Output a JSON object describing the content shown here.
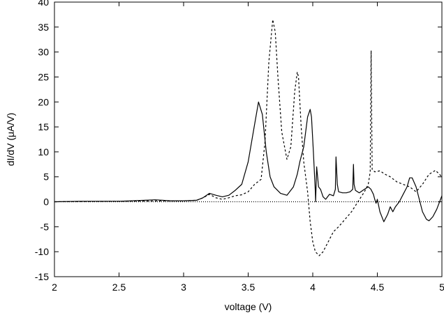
{
  "chart_data": {
    "type": "line",
    "title": "",
    "xlabel": "voltage (V)",
    "ylabel": "dI/dV (μA/V)",
    "xlim": [
      2,
      5
    ],
    "ylim": [
      -15,
      40
    ],
    "xticks": [
      2,
      2.5,
      3,
      3.5,
      4,
      4.5,
      5
    ],
    "xtick_labels": [
      "2",
      "2.5",
      "3",
      "3.5",
      "4",
      "4.5",
      "5"
    ],
    "yticks": [
      -15,
      -10,
      -5,
      0,
      5,
      10,
      15,
      20,
      25,
      30,
      35,
      40
    ],
    "ytick_labels": [
      "-15",
      "-10",
      "-5",
      "0",
      "5",
      "10",
      "15",
      "20",
      "25",
      "30",
      "35",
      "40"
    ],
    "grid": false,
    "legend": "none",
    "series": [
      {
        "style": "solid",
        "color": "#000000",
        "x": [
          2.0,
          2.2,
          2.5,
          2.7,
          2.78,
          2.9,
          3.0,
          3.1,
          3.15,
          3.2,
          3.25,
          3.3,
          3.35,
          3.4,
          3.45,
          3.5,
          3.55,
          3.58,
          3.61,
          3.64,
          3.67,
          3.7,
          3.75,
          3.8,
          3.85,
          3.88,
          3.9,
          3.93,
          3.96,
          3.98,
          3.99,
          4.005,
          4.02,
          4.022,
          4.03,
          4.045,
          4.06,
          4.08,
          4.1,
          4.13,
          4.16,
          4.175,
          4.18,
          4.19,
          4.2,
          4.23,
          4.26,
          4.29,
          4.31,
          4.315,
          4.32,
          4.33,
          4.36,
          4.4,
          4.43,
          4.45,
          4.47,
          4.48,
          4.49,
          4.5,
          4.52,
          4.55,
          4.58,
          4.6,
          4.62,
          4.64,
          4.67,
          4.7,
          4.73,
          4.75,
          4.77,
          4.8,
          4.85,
          4.88,
          4.9,
          4.93,
          4.96,
          5.0
        ],
        "y": [
          0.0,
          0.1,
          0.1,
          0.3,
          0.4,
          0.2,
          0.2,
          0.3,
          0.8,
          1.7,
          1.3,
          1.0,
          1.3,
          2.3,
          3.5,
          8.0,
          15.5,
          20.0,
          17.5,
          10.0,
          5.0,
          3.0,
          1.7,
          1.3,
          3.0,
          5.5,
          8.0,
          11.0,
          17.0,
          18.5,
          17.0,
          10.0,
          2.0,
          0.0,
          7.0,
          3.0,
          2.5,
          1.0,
          0.5,
          1.5,
          1.2,
          2.5,
          9.0,
          3.5,
          2.0,
          1.8,
          1.8,
          2.0,
          2.5,
          7.5,
          3.5,
          2.3,
          1.8,
          2.5,
          3.0,
          2.5,
          1.5,
          0.5,
          -0.3,
          0.5,
          -2.0,
          -4.0,
          -2.5,
          -1.0,
          -2.0,
          -1.0,
          0.0,
          1.5,
          3.0,
          4.8,
          4.8,
          3.0,
          -2.0,
          -3.5,
          -3.8,
          -3.0,
          -1.5,
          1.2
        ]
      },
      {
        "style": "dashed",
        "color": "#000000",
        "x": [
          2.0,
          2.5,
          3.0,
          3.1,
          3.15,
          3.2,
          3.25,
          3.3,
          3.35,
          3.4,
          3.45,
          3.5,
          3.55,
          3.6,
          3.63,
          3.66,
          3.69,
          3.71,
          3.73,
          3.76,
          3.8,
          3.83,
          3.86,
          3.88,
          3.89,
          3.91,
          3.93,
          3.96,
          3.98,
          4.0,
          4.02,
          4.05,
          4.08,
          4.12,
          4.16,
          4.2,
          4.25,
          4.3,
          4.35,
          4.4,
          4.43,
          4.445,
          4.452,
          4.46,
          4.48,
          4.52,
          4.56,
          4.6,
          4.65,
          4.7,
          4.75,
          4.8,
          4.85,
          4.9,
          4.95,
          5.0
        ],
        "y": [
          0.0,
          0.1,
          0.2,
          0.3,
          0.8,
          1.5,
          0.8,
          0.5,
          0.8,
          1.2,
          1.4,
          2.0,
          3.5,
          4.5,
          12.0,
          28.0,
          36.5,
          34.0,
          25.0,
          14.0,
          8.5,
          11.0,
          22.0,
          26.0,
          25.0,
          15.0,
          8.0,
          2.0,
          -4.0,
          -8.0,
          -10.0,
          -10.8,
          -10.0,
          -8.0,
          -6.0,
          -5.0,
          -3.5,
          -2.0,
          0.0,
          2.0,
          3.5,
          6.0,
          30.3,
          6.5,
          6.0,
          6.2,
          5.5,
          5.0,
          4.0,
          3.5,
          3.0,
          2.0,
          3.5,
          5.5,
          6.3,
          5.0
        ]
      },
      {
        "style": "dotted",
        "color": "#000000",
        "x": [
          2,
          5
        ],
        "y": [
          0,
          0
        ]
      }
    ]
  }
}
